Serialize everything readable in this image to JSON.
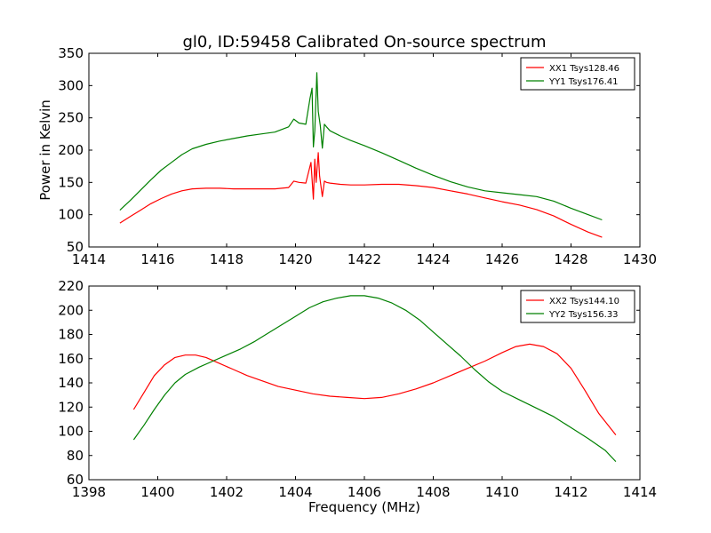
{
  "title": "gl0, ID:59458 Calibrated On-source spectrum",
  "chart_data": [
    {
      "type": "line",
      "ylabel": "Power in Kelvin",
      "xlabel": "",
      "xlim": [
        1414,
        1430
      ],
      "ylim": [
        50,
        350
      ],
      "xticks": [
        1414,
        1416,
        1418,
        1420,
        1422,
        1424,
        1426,
        1428,
        1430
      ],
      "yticks": [
        50,
        100,
        150,
        200,
        250,
        300,
        350
      ],
      "grid": false,
      "legend_position": "top-right",
      "series": [
        {
          "name": "XX1 Tsys128.46",
          "color": "#ff0000",
          "x": [
            1414.9,
            1415.2,
            1415.5,
            1415.8,
            1416.1,
            1416.4,
            1416.7,
            1417.0,
            1417.4,
            1417.8,
            1418.2,
            1418.6,
            1419.0,
            1419.4,
            1419.8,
            1419.95,
            1420.1,
            1420.3,
            1420.45,
            1420.52,
            1420.56,
            1420.6,
            1420.66,
            1420.7,
            1420.78,
            1420.84,
            1420.9,
            1421.0,
            1421.3,
            1421.6,
            1422.0,
            1422.5,
            1423.0,
            1423.5,
            1424.0,
            1424.5,
            1425.0,
            1425.5,
            1426.0,
            1426.5,
            1427.0,
            1427.5,
            1428.0,
            1428.5,
            1428.9
          ],
          "y": [
            87,
            97,
            107,
            117,
            125,
            132,
            137,
            140,
            141,
            141,
            140,
            140,
            140,
            140,
            142,
            152,
            150,
            149,
            181,
            124,
            186,
            150,
            196,
            160,
            128,
            152,
            150,
            149,
            147,
            146,
            146,
            147,
            147,
            145,
            142,
            137,
            132,
            126,
            120,
            115,
            108,
            98,
            85,
            73,
            65
          ]
        },
        {
          "name": "YY1 Tsys176.41",
          "color": "#008000",
          "x": [
            1414.9,
            1415.2,
            1415.5,
            1415.8,
            1416.1,
            1416.4,
            1416.7,
            1417.0,
            1417.4,
            1417.8,
            1418.2,
            1418.6,
            1419.0,
            1419.4,
            1419.8,
            1419.95,
            1420.1,
            1420.3,
            1420.42,
            1420.48,
            1420.52,
            1420.56,
            1420.62,
            1420.66,
            1420.72,
            1420.78,
            1420.84,
            1420.9,
            1421.0,
            1421.3,
            1421.6,
            1422.0,
            1422.5,
            1423.0,
            1423.5,
            1424.0,
            1424.5,
            1425.0,
            1425.5,
            1426.0,
            1426.5,
            1427.0,
            1427.5,
            1428.0,
            1428.5,
            1428.9
          ],
          "y": [
            107,
            122,
            138,
            154,
            169,
            181,
            193,
            202,
            209,
            214,
            218,
            222,
            225,
            228,
            236,
            248,
            242,
            240,
            280,
            296,
            205,
            230,
            320,
            260,
            238,
            203,
            240,
            236,
            230,
            222,
            215,
            207,
            196,
            184,
            172,
            161,
            151,
            143,
            137,
            134,
            131,
            128,
            121,
            110,
            100,
            92
          ]
        }
      ]
    },
    {
      "type": "line",
      "xlabel": "Frequency (MHz)",
      "ylabel": "",
      "xlim": [
        1398,
        1414
      ],
      "ylim": [
        60,
        220
      ],
      "xticks": [
        1398,
        1400,
        1402,
        1404,
        1406,
        1408,
        1410,
        1412,
        1414
      ],
      "yticks": [
        60,
        80,
        100,
        120,
        140,
        160,
        180,
        200,
        220
      ],
      "grid": false,
      "legend_position": "top-right",
      "series": [
        {
          "name": "XX2 Tsys144.10",
          "color": "#ff0000",
          "x": [
            1399.3,
            1399.6,
            1399.9,
            1400.2,
            1400.5,
            1400.8,
            1401.1,
            1401.4,
            1401.8,
            1402.2,
            1402.6,
            1403.0,
            1403.5,
            1404.0,
            1404.5,
            1405.0,
            1405.5,
            1406.0,
            1406.5,
            1407.0,
            1407.5,
            1408.0,
            1408.5,
            1409.0,
            1409.5,
            1410.0,
            1410.4,
            1410.8,
            1411.2,
            1411.6,
            1412.0,
            1412.4,
            1412.8,
            1413.3
          ],
          "y": [
            118,
            132,
            146,
            155,
            161,
            163,
            163,
            161,
            156,
            151,
            146,
            142,
            137,
            134,
            131,
            129,
            128,
            127,
            128,
            131,
            135,
            140,
            146,
            152,
            158,
            165,
            170,
            172,
            170,
            164,
            152,
            134,
            115,
            97
          ]
        },
        {
          "name": "YY2 Tsys156.33",
          "color": "#008000",
          "x": [
            1399.3,
            1399.6,
            1399.9,
            1400.2,
            1400.5,
            1400.8,
            1401.2,
            1401.6,
            1402.0,
            1402.4,
            1402.8,
            1403.2,
            1403.6,
            1404.0,
            1404.4,
            1404.8,
            1405.2,
            1405.6,
            1406.0,
            1406.4,
            1406.8,
            1407.2,
            1407.6,
            1408.0,
            1408.4,
            1408.8,
            1409.2,
            1409.6,
            1410.0,
            1410.5,
            1411.0,
            1411.5,
            1412.0,
            1412.5,
            1413.0,
            1413.3
          ],
          "y": [
            93,
            105,
            118,
            130,
            140,
            147,
            153,
            158,
            163,
            168,
            174,
            181,
            188,
            195,
            202,
            207,
            210,
            212,
            212,
            210,
            206,
            200,
            192,
            182,
            172,
            162,
            151,
            141,
            133,
            126,
            119,
            112,
            103,
            94,
            84,
            75
          ]
        }
      ]
    }
  ]
}
